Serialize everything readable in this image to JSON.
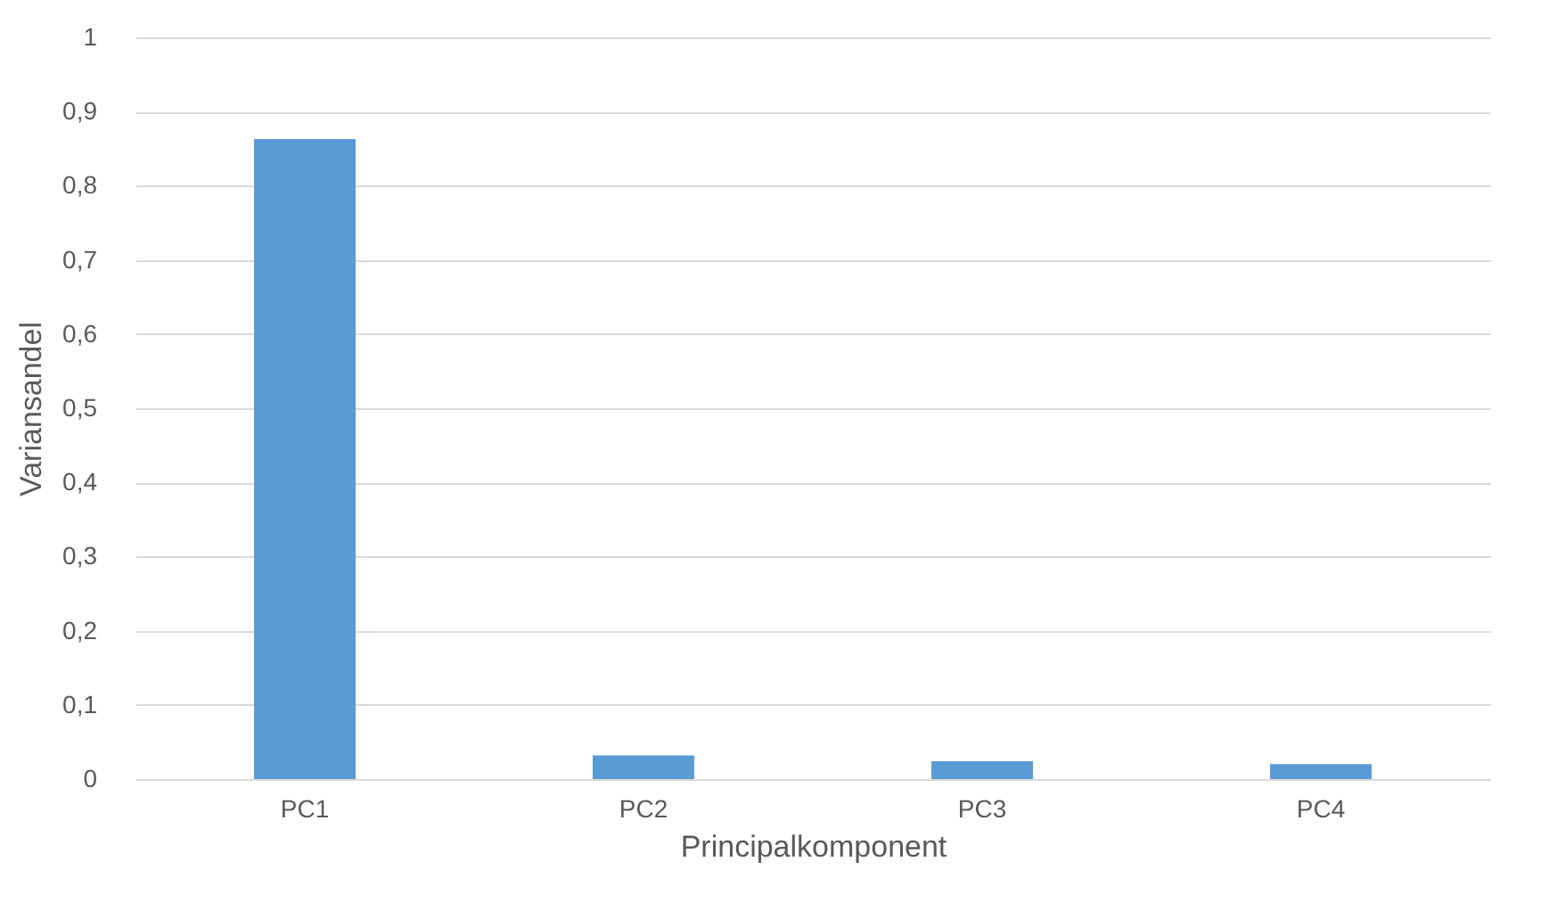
{
  "chart_data": {
    "type": "bar",
    "xlabel": "Principalkomponent",
    "ylabel": "Variansandel",
    "categories": [
      "PC1",
      "PC2",
      "PC3",
      "PC4"
    ],
    "values": [
      0.863,
      0.032,
      0.024,
      0.02
    ],
    "color": "#5b9bd5",
    "ylim": [
      0,
      1
    ],
    "yticks": [
      0,
      {
        "value": 0.1,
        "label": "0,1"
      },
      {
        "value": 0.2,
        "label": "0,2"
      },
      {
        "value": 0.3,
        "label": "0,3"
      },
      {
        "value": 0.4,
        "label": "0,4"
      },
      {
        "value": 0.5,
        "label": "0,5"
      },
      {
        "value": 0.6,
        "label": "0,6"
      },
      {
        "value": 0.7,
        "label": "0,7"
      },
      {
        "value": 0.8,
        "label": "0,8"
      },
      {
        "value": 0.9,
        "label": "0,9"
      },
      1
    ],
    "grid": "y"
  }
}
